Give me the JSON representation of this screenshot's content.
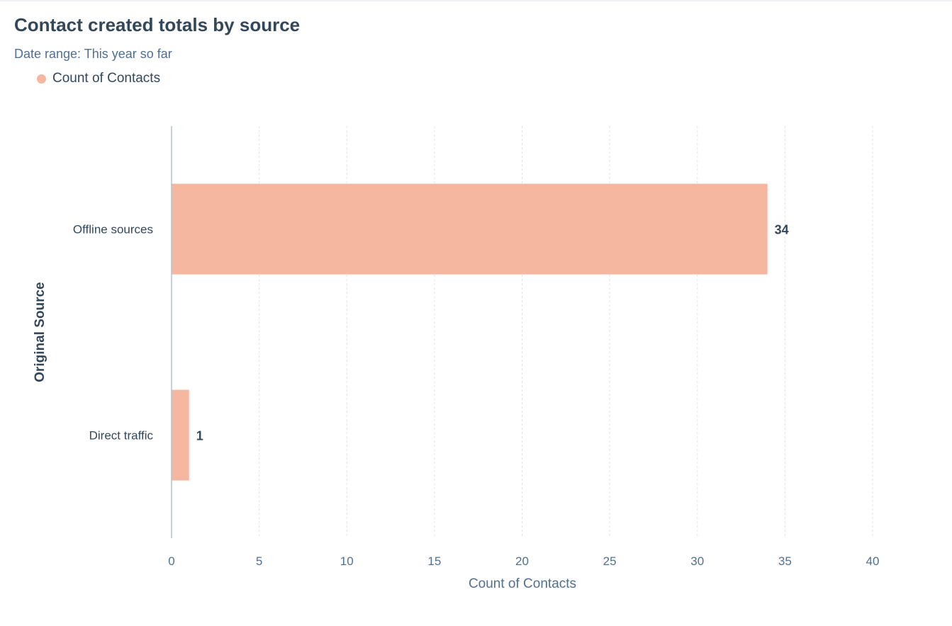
{
  "chart_data": {
    "type": "bar",
    "orientation": "horizontal",
    "title": "Contact created totals by source",
    "subtitle": "Date range: This year so far",
    "categories": [
      "Offline sources",
      "Direct traffic"
    ],
    "series": [
      {
        "name": "Count of Contacts",
        "values": [
          34,
          1
        ],
        "color": "#f5b7a0"
      }
    ],
    "xlabel": "Count of Contacts",
    "ylabel": "Original Source",
    "xlim": [
      0,
      40
    ],
    "xticks": [
      0,
      5,
      10,
      15,
      20,
      25,
      30,
      35,
      40
    ],
    "grid": true,
    "legend_position": "top-left",
    "data_labels": true
  }
}
